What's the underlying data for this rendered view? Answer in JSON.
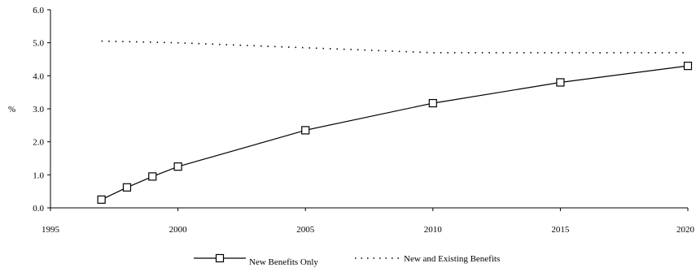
{
  "chart_data": {
    "type": "line",
    "title": "",
    "xlabel": "",
    "ylabel": "%",
    "xlim": [
      1995,
      2020
    ],
    "ylim": [
      0.0,
      6.0
    ],
    "x_ticks": [
      "1995",
      "2000",
      "2005",
      "2010",
      "2015",
      "2020"
    ],
    "y_ticks": [
      "0.0",
      "1.0",
      "2.0",
      "3.0",
      "4.0",
      "5.0",
      "6.0"
    ],
    "grid": false,
    "legend_position": "bottom",
    "series": [
      {
        "name": "New Benefits Only",
        "style": "solid-square-markers",
        "color": "#000000",
        "x": [
          1997,
          1998,
          1999,
          2000,
          2005,
          2010,
          2015,
          2020
        ],
        "y": [
          0.25,
          0.62,
          0.95,
          1.25,
          2.35,
          3.17,
          3.8,
          4.3
        ]
      },
      {
        "name": "New and Existing Benefits",
        "style": "dotted",
        "color": "#000000",
        "x": [
          1997,
          2000,
          2005,
          2010,
          2015,
          2020
        ],
        "y": [
          5.05,
          5.0,
          4.85,
          4.7,
          4.7,
          4.7
        ]
      }
    ]
  }
}
